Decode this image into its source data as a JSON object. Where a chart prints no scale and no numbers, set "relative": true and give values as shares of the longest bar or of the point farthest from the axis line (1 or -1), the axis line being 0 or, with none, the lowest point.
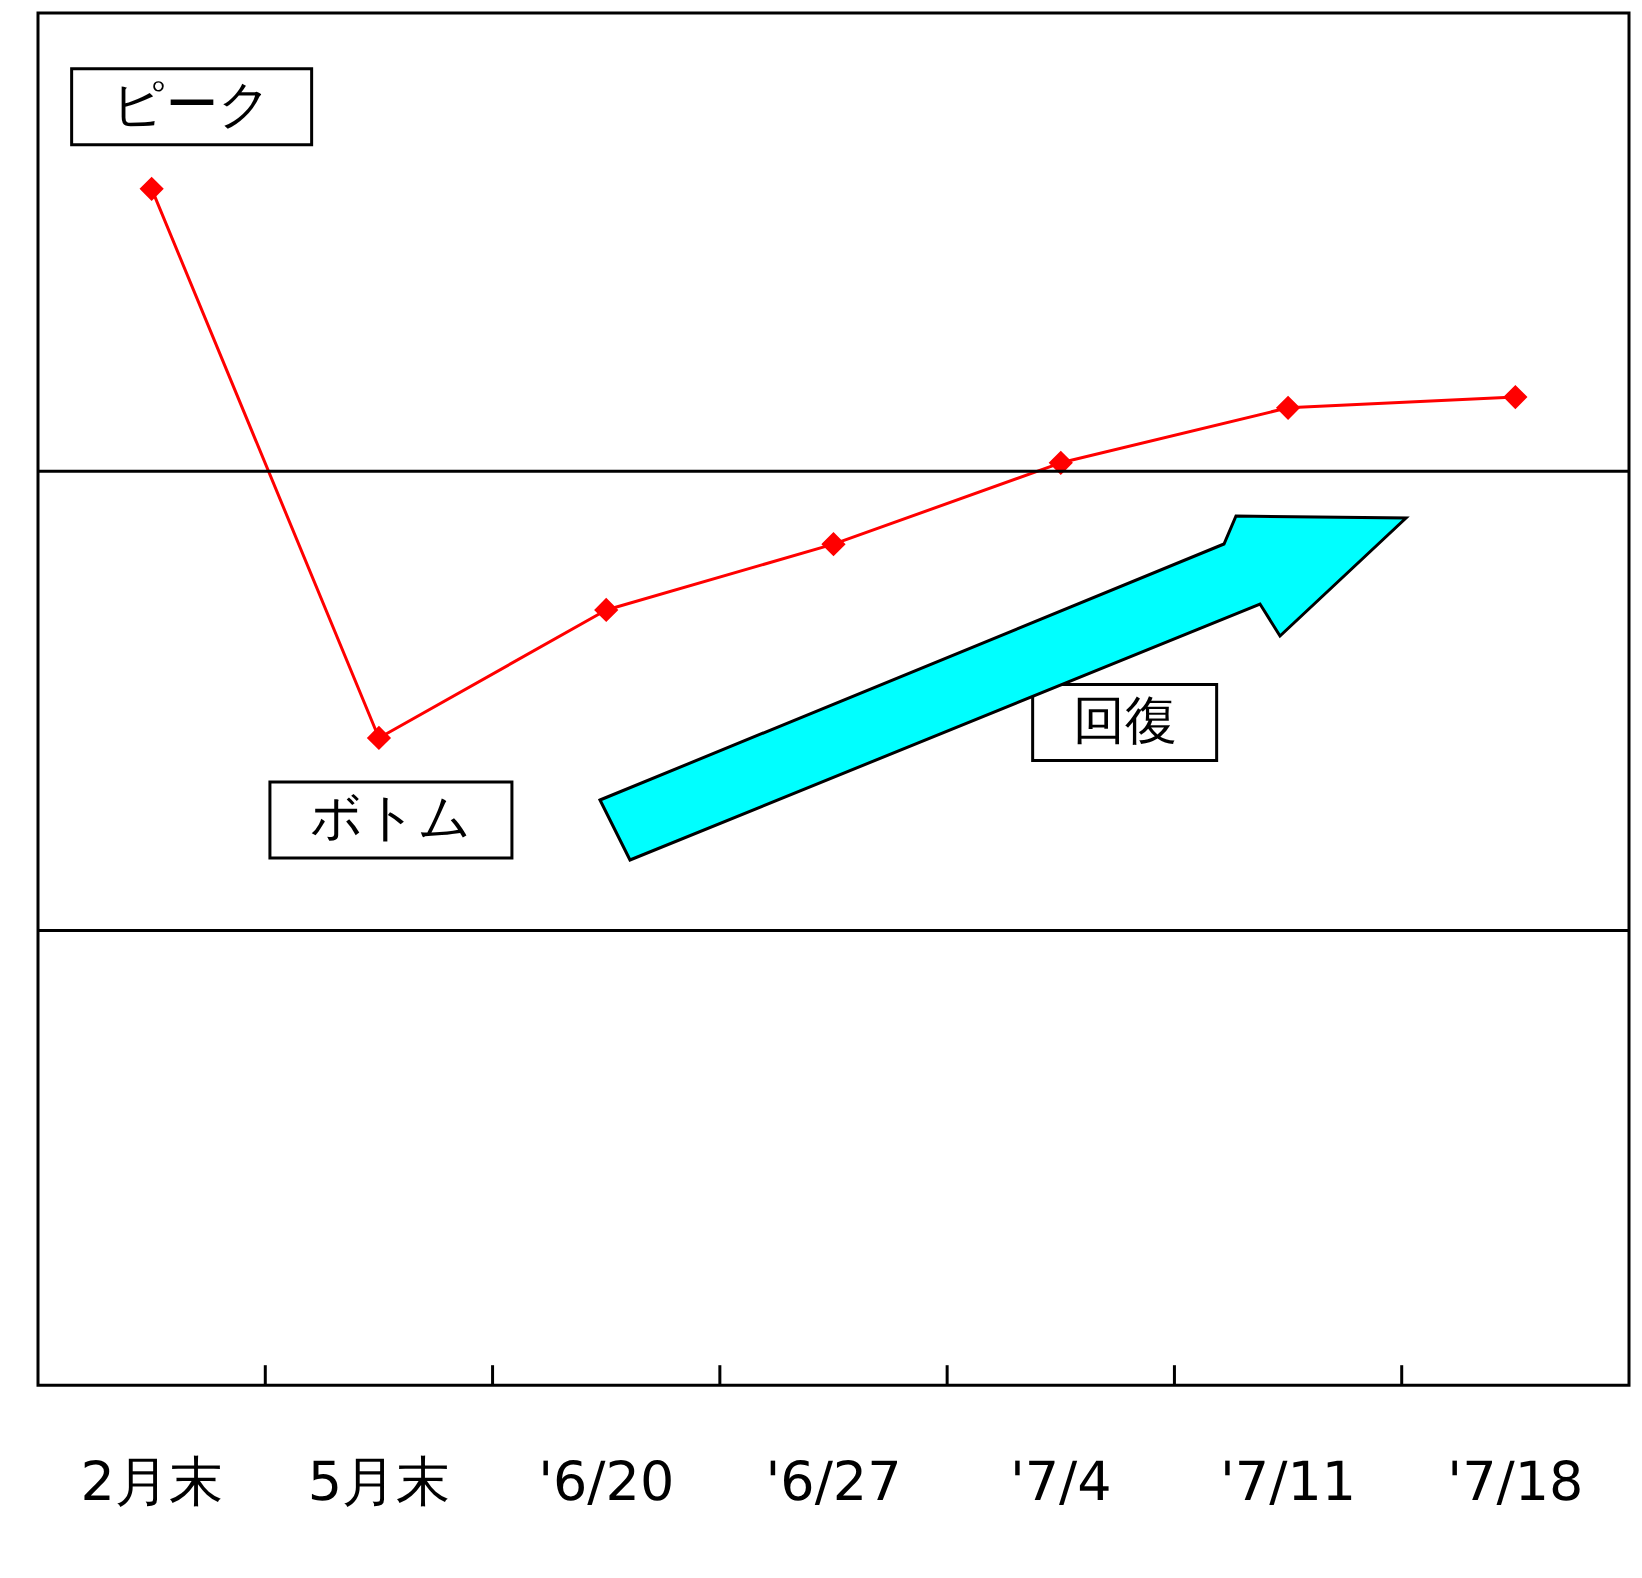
{
  "chart_data": {
    "type": "line",
    "relative": true,
    "categories": [
      "2月末",
      "5月末",
      "'6/20",
      "'6/27",
      "'7/4",
      "'7/11",
      "'7/18"
    ],
    "series": [
      {
        "color": "#ff0000",
        "values": [
          1,
          0.541,
          0.648,
          0.703,
          0.771,
          0.817,
          0.826
        ]
      }
    ],
    "marker": "diamond",
    "legend": false,
    "ref_lines": [
      {
        "axis": "y",
        "value": 0.764,
        "color": "#000000"
      },
      {
        "axis": "y",
        "value": 0.38,
        "color": "#000000"
      }
    ],
    "annotations": [
      {
        "text": "ピーク",
        "x": "2月末",
        "y": 1
      },
      {
        "text": "ボトム",
        "x": "5月末",
        "y": 0.541
      },
      "回復"
    ]
  }
}
